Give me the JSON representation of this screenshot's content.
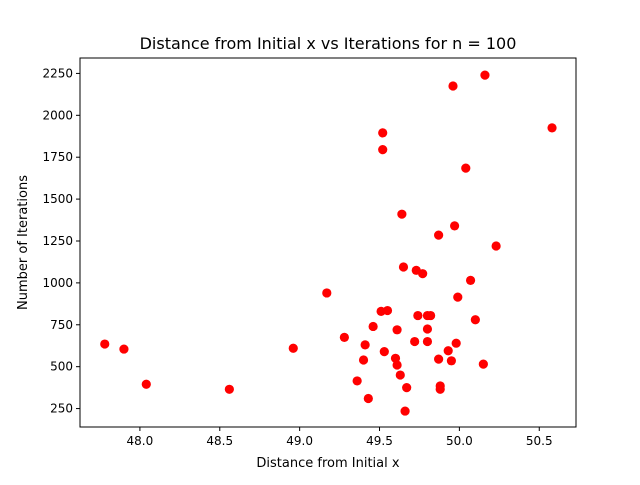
{
  "chart_data": {
    "type": "scatter",
    "title": "Distance from Initial x vs Iterations for n = 100",
    "xlabel": "Distance from Initial x",
    "ylabel": "Number of Iterations",
    "xlim": [
      47.625,
      50.73
    ],
    "ylim": [
      140,
      2342
    ],
    "xticks": [
      48.0,
      48.5,
      49.0,
      49.5,
      50.0,
      50.5
    ],
    "xtick_labels": [
      "48.0",
      "48.5",
      "49.0",
      "49.5",
      "50.0",
      "50.5"
    ],
    "yticks": [
      250,
      500,
      750,
      1000,
      1250,
      1500,
      1750,
      2000,
      2250
    ],
    "ytick_labels": [
      "250",
      "500",
      "750",
      "1000",
      "1250",
      "1500",
      "1750",
      "2000",
      "2250"
    ],
    "grid": false,
    "marker_color": "#ff0000",
    "series": [
      {
        "x": [
          47.78,
          47.9,
          48.04,
          48.56,
          48.96,
          49.17,
          49.28,
          49.36,
          49.4,
          49.41,
          49.43,
          49.46,
          49.51,
          49.52,
          49.52,
          49.53,
          49.55,
          49.6,
          49.61,
          49.61,
          49.63,
          49.64,
          49.65,
          49.66,
          49.67,
          49.72,
          49.73,
          49.74,
          49.77,
          49.8,
          49.8,
          49.8,
          49.82,
          49.87,
          49.87,
          49.88,
          49.88,
          49.93,
          49.95,
          49.96,
          49.97,
          49.98,
          49.99,
          50.04,
          50.07,
          50.1,
          50.15,
          50.16,
          50.23,
          50.58
        ],
        "y": [
          635,
          605,
          395,
          365,
          610,
          940,
          675,
          415,
          540,
          630,
          310,
          740,
          830,
          1895,
          1795,
          590,
          835,
          550,
          720,
          510,
          450,
          1410,
          1095,
          235,
          375,
          650,
          1075,
          805,
          1055,
          805,
          725,
          650,
          805,
          545,
          1285,
          385,
          365,
          595,
          535,
          2175,
          1340,
          640,
          915,
          1685,
          1015,
          780,
          515,
          2240,
          1220,
          1925
        ]
      }
    ]
  }
}
